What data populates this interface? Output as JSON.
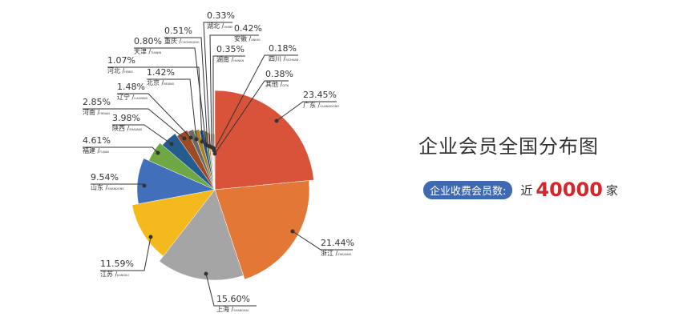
{
  "chart_data": {
    "type": "pie",
    "title": "企业会员全国分布图",
    "slices": [
      {
        "name": "广东",
        "pinyin": "GUANGDONG",
        "value": 23.45,
        "label": "23.45%",
        "color": "#d9533a"
      },
      {
        "name": "浙江",
        "pinyin": "ZHEJIANG",
        "value": 21.44,
        "label": "21.44%",
        "color": "#e37836"
      },
      {
        "name": "上海",
        "pinyin": "SHANGHAI",
        "value": 15.6,
        "label": "15.60%",
        "color": "#a5a5a5"
      },
      {
        "name": "江苏",
        "pinyin": "JIANGSU",
        "value": 11.59,
        "label": "11.59%",
        "color": "#f4b91c"
      },
      {
        "name": "山东",
        "pinyin": "SHANDONG",
        "value": 9.54,
        "label": "9.54%",
        "color": "#416fb9"
      },
      {
        "name": "福建",
        "pinyin": "FUJIAN",
        "value": 4.61,
        "label": "4.61%",
        "color": "#6ea845"
      },
      {
        "name": "陕西",
        "pinyin": "SHAANXI",
        "value": 3.98,
        "label": "3.98%",
        "color": "#245c8e"
      },
      {
        "name": "河南",
        "pinyin": "HENAN",
        "value": 2.85,
        "label": "2.85%",
        "color": "#9e4a25"
      },
      {
        "name": "辽宁",
        "pinyin": "LIAONING",
        "value": 1.48,
        "label": "1.48%",
        "color": "#6a6a6a"
      },
      {
        "name": "北京",
        "pinyin": "BEIJING",
        "value": 1.42,
        "label": "1.42%",
        "color": "#a5841f"
      },
      {
        "name": "河北",
        "pinyin": "HEBEI",
        "value": 1.07,
        "label": "1.07%",
        "color": "#2b4a8a"
      },
      {
        "name": "天津",
        "pinyin": "TIANJIN",
        "value": 0.8,
        "label": "0.80%",
        "color": "#4d8033"
      },
      {
        "name": "重庆",
        "pinyin": "CHONGQING",
        "value": 0.51,
        "label": "0.51%",
        "color": "#c0724a"
      },
      {
        "name": "湖北",
        "pinyin": "HUBEI",
        "value": 0.33,
        "label": "0.33%",
        "color": "#8fa8d6"
      },
      {
        "name": "安徽",
        "pinyin": "ANHUI",
        "value": 0.42,
        "label": "0.42%",
        "color": "#f0a070"
      },
      {
        "name": "湖南",
        "pinyin": "HUNAN",
        "value": 0.35,
        "label": "0.35%",
        "color": "#c9c9c9"
      },
      {
        "name": "四川",
        "pinyin": "SICHUAN",
        "value": 0.18,
        "label": "0.18%",
        "color": "#f7d26a"
      },
      {
        "name": "其他",
        "pinyin": "QITA",
        "value": 0.38,
        "label": "0.38%",
        "color": "#9cc27e"
      }
    ]
  },
  "summary": {
    "badge": "企业收费会员数:",
    "prefix": "近",
    "number": "40000",
    "unit": "家"
  }
}
